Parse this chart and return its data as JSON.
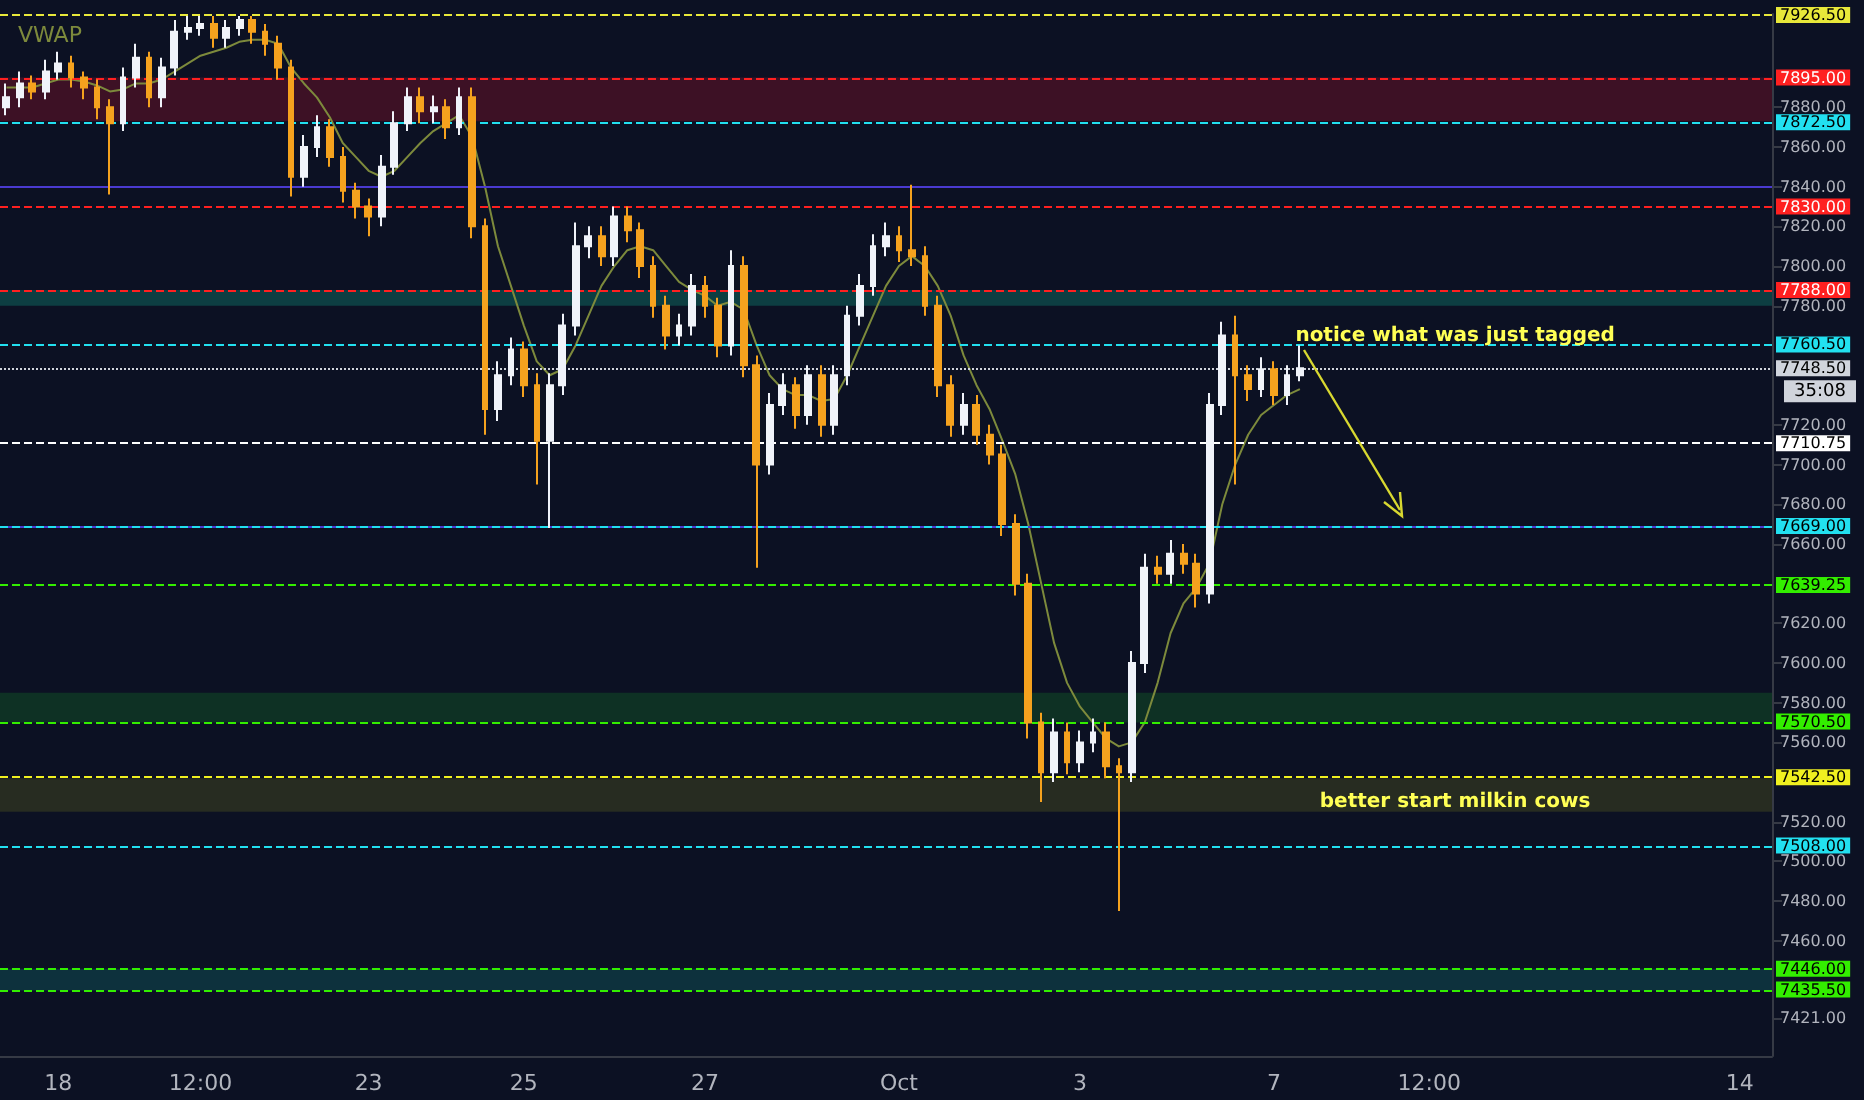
{
  "chart_data": {
    "type": "candlestick",
    "legend": "top left",
    "grid": false,
    "marker": "none",
    "categories": [
      null,
      null,
      null,
      null,
      "18",
      null,
      null,
      null,
      null,
      null,
      null,
      null,
      null,
      null,
      null,
      "12:00",
      null,
      null,
      null,
      null,
      null,
      null,
      null,
      null,
      null,
      null,
      null,
      null,
      "23",
      null,
      null,
      null,
      null,
      null,
      null,
      null,
      null,
      null,
      null,
      null,
      "25",
      null,
      null,
      null,
      null,
      null,
      null,
      null,
      null,
      null,
      null,
      null,
      null,
      null,
      "27",
      null,
      null,
      null,
      null,
      null,
      null,
      null,
      null,
      null,
      null,
      null,
      null,
      null,
      null,
      "Oct",
      null,
      null,
      null,
      null,
      null,
      null,
      null,
      null,
      null,
      null,
      null,
      null,
      null,
      "3",
      null,
      null,
      null,
      null,
      null,
      null,
      null,
      null,
      null,
      null,
      null,
      null,
      null,
      null,
      "7",
      null,
      null,
      null,
      null,
      null,
      null,
      null,
      null,
      null,
      null,
      null,
      "12:00",
      null,
      null,
      null,
      null,
      null,
      null,
      null,
      null,
      null,
      null,
      null,
      null,
      null,
      null,
      null,
      null,
      null,
      null,
      null,
      null,
      null,
      null,
      null,
      "14",
      null,
      null
    ],
    "ohlc": [
      [
        7880,
        7892,
        7876,
        7885
      ],
      [
        7885,
        7898,
        7880,
        7892
      ],
      [
        7892,
        7896,
        7884,
        7888
      ],
      [
        7888,
        7904,
        7884,
        7898
      ],
      [
        7898,
        7908,
        7894,
        7902
      ],
      [
        7902,
        7906,
        7890,
        7895
      ],
      [
        7895,
        7898,
        7884,
        7890
      ],
      [
        7890,
        7894,
        7874,
        7880
      ],
      [
        7880,
        7884,
        7836,
        7872
      ],
      [
        7872,
        7900,
        7868,
        7895
      ],
      [
        7895,
        7912,
        7890,
        7905
      ],
      [
        7905,
        7908,
        7880,
        7885
      ],
      [
        7885,
        7905,
        7880,
        7900
      ],
      [
        7900,
        7924,
        7896,
        7918
      ],
      [
        7918,
        7926,
        7914,
        7920
      ],
      [
        7920,
        7926,
        7916,
        7922
      ],
      [
        7922,
        7926,
        7910,
        7915
      ],
      [
        7915,
        7924,
        7910,
        7920
      ],
      [
        7920,
        7926,
        7916,
        7924
      ],
      [
        7924,
        7926,
        7912,
        7918
      ],
      [
        7918,
        7922,
        7906,
        7912
      ],
      [
        7912,
        7916,
        7894,
        7900
      ],
      [
        7900,
        7904,
        7835,
        7845
      ],
      [
        7845,
        7866,
        7840,
        7860
      ],
      [
        7860,
        7876,
        7855,
        7870
      ],
      [
        7870,
        7874,
        7850,
        7855
      ],
      [
        7855,
        7860,
        7832,
        7838
      ],
      [
        7838,
        7842,
        7824,
        7830
      ],
      [
        7830,
        7834,
        7815,
        7825
      ],
      [
        7825,
        7856,
        7820,
        7850
      ],
      [
        7850,
        7878,
        7846,
        7872
      ],
      [
        7872,
        7890,
        7868,
        7885
      ],
      [
        7885,
        7890,
        7872,
        7878
      ],
      [
        7878,
        7886,
        7872,
        7880
      ],
      [
        7880,
        7884,
        7864,
        7870
      ],
      [
        7870,
        7890,
        7866,
        7885
      ],
      [
        7885,
        7890,
        7814,
        7820
      ],
      [
        7820,
        7824,
        7715,
        7728
      ],
      [
        7728,
        7752,
        7722,
        7745
      ],
      [
        7745,
        7764,
        7740,
        7758
      ],
      [
        7758,
        7762,
        7734,
        7740
      ],
      [
        7740,
        7746,
        7690,
        7712
      ],
      [
        7712,
        7746,
        7668,
        7740
      ],
      [
        7740,
        7776,
        7735,
        7770
      ],
      [
        7770,
        7822,
        7765,
        7810
      ],
      [
        7810,
        7820,
        7804,
        7815
      ],
      [
        7815,
        7820,
        7800,
        7805
      ],
      [
        7805,
        7830,
        7800,
        7825
      ],
      [
        7825,
        7830,
        7812,
        7818
      ],
      [
        7818,
        7822,
        7794,
        7800
      ],
      [
        7800,
        7805,
        7774,
        7780
      ],
      [
        7780,
        7785,
        7758,
        7765
      ],
      [
        7765,
        7776,
        7760,
        7770
      ],
      [
        7770,
        7796,
        7765,
        7790
      ],
      [
        7790,
        7795,
        7774,
        7780
      ],
      [
        7780,
        7784,
        7754,
        7760
      ],
      [
        7760,
        7808,
        7755,
        7800
      ],
      [
        7800,
        7805,
        7744,
        7750
      ],
      [
        7750,
        7755,
        7648,
        7700
      ],
      [
        7700,
        7736,
        7695,
        7730
      ],
      [
        7730,
        7746,
        7725,
        7740
      ],
      [
        7740,
        7744,
        7718,
        7725
      ],
      [
        7725,
        7750,
        7720,
        7745
      ],
      [
        7745,
        7750,
        7714,
        7720
      ],
      [
        7720,
        7750,
        7715,
        7745
      ],
      [
        7745,
        7780,
        7740,
        7775
      ],
      [
        7775,
        7796,
        7770,
        7790
      ],
      [
        7790,
        7816,
        7785,
        7810
      ],
      [
        7810,
        7822,
        7805,
        7815
      ],
      [
        7815,
        7820,
        7802,
        7808
      ],
      [
        7808,
        7841,
        7800,
        7805
      ],
      [
        7805,
        7810,
        7775,
        7780
      ],
      [
        7780,
        7785,
        7734,
        7740
      ],
      [
        7740,
        7745,
        7714,
        7720
      ],
      [
        7720,
        7736,
        7715,
        7730
      ],
      [
        7730,
        7735,
        7710,
        7715
      ],
      [
        7715,
        7720,
        7700,
        7705
      ],
      [
        7705,
        7710,
        7664,
        7670
      ],
      [
        7670,
        7675,
        7634,
        7640
      ],
      [
        7640,
        7645,
        7562,
        7570
      ],
      [
        7570,
        7575,
        7530,
        7545
      ],
      [
        7545,
        7572,
        7540,
        7565
      ],
      [
        7565,
        7570,
        7544,
        7550
      ],
      [
        7550,
        7566,
        7545,
        7560
      ],
      [
        7560,
        7572,
        7555,
        7565
      ],
      [
        7565,
        7570,
        7542,
        7548
      ],
      [
        7548,
        7552,
        7475,
        7545
      ],
      [
        7545,
        7606,
        7540,
        7600
      ],
      [
        7600,
        7655,
        7595,
        7648
      ],
      [
        7648,
        7654,
        7640,
        7645
      ],
      [
        7645,
        7662,
        7640,
        7655
      ],
      [
        7655,
        7660,
        7645,
        7650
      ],
      [
        7650,
        7655,
        7628,
        7635
      ],
      [
        7635,
        7736,
        7630,
        7730
      ],
      [
        7730,
        7772,
        7725,
        7765
      ],
      [
        7765,
        7775,
        7690,
        7745
      ],
      [
        7745,
        7750,
        7732,
        7738
      ],
      [
        7738,
        7754,
        7734,
        7748
      ],
      [
        7748,
        7752,
        7730,
        7735
      ],
      [
        7735,
        7750,
        7730,
        7745
      ],
      [
        7745,
        7760,
        7742,
        7748.5
      ],
      null,
      null,
      null,
      null,
      null,
      null,
      null,
      null,
      null,
      null,
      null,
      null,
      null,
      null,
      null,
      null,
      null,
      null,
      null,
      null,
      null,
      null,
      null,
      null,
      null,
      null,
      null,
      null,
      null,
      null,
      null,
      null,
      null,
      null,
      null,
      null
    ],
    "series": [
      {
        "name": "VWAP",
        "type": "line",
        "color": "#7d8a3c",
        "values": [
          7890,
          7890,
          7890,
          7892,
          7894,
          7894,
          7893,
          7891,
          7888,
          7889,
          7892,
          7892,
          7894,
          7898,
          7902,
          7906,
          7908,
          7910,
          7913,
          7914,
          7914,
          7912,
          7900,
          7892,
          7885,
          7875,
          7862,
          7855,
          7848,
          7845,
          7848,
          7855,
          7862,
          7868,
          7872,
          7876,
          7865,
          7840,
          7810,
          7790,
          7770,
          7752,
          7745,
          7748,
          7760,
          7775,
          7790,
          7800,
          7808,
          7810,
          7808,
          7800,
          7792,
          7788,
          7785,
          7780,
          7782,
          7778,
          7760,
          7745,
          7738,
          7735,
          7735,
          7732,
          7733,
          7745,
          7760,
          7775,
          7790,
          7800,
          7805,
          7800,
          7790,
          7775,
          7755,
          7740,
          7728,
          7712,
          7695,
          7670,
          7640,
          7610,
          7590,
          7578,
          7570,
          7562,
          7558,
          7560,
          7570,
          7590,
          7615,
          7630,
          7638,
          7650,
          7680,
          7700,
          7715,
          7725,
          7730,
          7735,
          7738,
          null,
          null,
          null,
          null,
          null,
          null,
          null,
          null,
          null,
          null,
          null,
          null,
          null,
          null,
          null,
          null,
          null,
          null,
          null,
          null,
          null,
          null,
          null,
          null,
          null,
          null,
          null,
          null,
          null,
          null,
          null,
          null,
          null,
          null,
          null,
          null
        ]
      }
    ],
    "ylim": [
      7402,
      7927
    ],
    "yticks": [
      {
        "value": 7880,
        "label": "7880.00"
      },
      {
        "value": 7860,
        "label": "7860.00"
      },
      {
        "value": 7840,
        "label": "7840.00"
      },
      {
        "value": 7820,
        "label": "7820.00"
      },
      {
        "value": 7800,
        "label": "7800.00"
      },
      {
        "value": 7780,
        "label": "7780.00"
      },
      {
        "value": 7720,
        "label": "7720.00"
      },
      {
        "value": 7700,
        "label": "7700.00"
      },
      {
        "value": 7680,
        "label": "7680.00"
      },
      {
        "value": 7660,
        "label": "7660.00"
      },
      {
        "value": 7620,
        "label": "7620.00"
      },
      {
        "value": 7600,
        "label": "7600.00"
      },
      {
        "value": 7580,
        "label": "7580.00"
      },
      {
        "value": 7560,
        "label": "7560.00"
      },
      {
        "value": 7520,
        "label": "7520.00"
      },
      {
        "value": 7500,
        "label": "7500.00"
      },
      {
        "value": 7480,
        "label": "7480.00"
      },
      {
        "value": 7460,
        "label": "7460.00"
      },
      {
        "value": 7421,
        "label": "7421.00"
      }
    ],
    "ref_lines": [
      {
        "axis": "y",
        "value": 7926.5,
        "label": "7926.50",
        "color": "#e8e83a",
        "line_style": "dashed"
      },
      {
        "axis": "y",
        "value": 7895,
        "label": "7895.00",
        "color": "#ff2020",
        "line_style": "dashed"
      },
      {
        "axis": "y",
        "value": 7872.5,
        "label": "7872.50",
        "color": "#22e0f0",
        "line_style": "dashed"
      },
      {
        "axis": "y",
        "value": 7840,
        "label": null,
        "color": "#4a3ad0",
        "line_style": "solid"
      },
      {
        "axis": "y",
        "value": 7830,
        "label": "7830.00",
        "color": "#ff2020",
        "line_style": "dashed"
      },
      {
        "axis": "y",
        "value": 7788,
        "label": "7788.00",
        "color": "#ff2020",
        "line_style": "dashed"
      },
      {
        "axis": "y",
        "value": 7760.5,
        "label": "7760.50",
        "color": "#22e0f0",
        "line_style": "dashed"
      },
      {
        "axis": "y",
        "value": 7748.5,
        "label": "7748.50",
        "color": "#d0d4dc",
        "line_style": "dotted"
      },
      {
        "axis": "y",
        "value": 7710.75,
        "label": "7710.75",
        "color": "#ffffff",
        "line_style": "dashed"
      },
      {
        "axis": "y",
        "value": 7669,
        "label": null,
        "color": "#4a3ad0",
        "line_style": "solid"
      },
      {
        "axis": "y",
        "value": 7669,
        "label": "7669.00",
        "color": "#22e0f0",
        "line_style": "dashed"
      },
      {
        "axis": "y",
        "value": 7639.25,
        "label": "7639.25",
        "color": "#33ee00",
        "line_style": "dashed"
      },
      {
        "axis": "y",
        "value": 7570.5,
        "label": "7570.50",
        "color": "#33ee00",
        "line_style": "dashed"
      },
      {
        "axis": "y",
        "value": 7542.5,
        "label": "7542.50",
        "color": "#f0f020",
        "line_style": "dashed"
      },
      {
        "axis": "y",
        "value": 7508,
        "label": "7508.00",
        "color": "#22e0f0",
        "line_style": "dashed"
      },
      {
        "axis": "y",
        "value": 7446,
        "label": "7446.00",
        "color": "#33ee00",
        "line_style": "dashed"
      },
      {
        "axis": "y",
        "value": 7435.5,
        "label": "7435.50",
        "color": "#33ee00",
        "line_style": "dashed"
      }
    ],
    "bands": [
      {
        "axis": "y",
        "from": 7873,
        "to": 7895,
        "color": "#4a1226"
      },
      {
        "axis": "y",
        "from": 7780,
        "to": 7788,
        "color": "#0e4a4a"
      },
      {
        "axis": "y",
        "from": 7570,
        "to": 7585,
        "color": "#0f3a24"
      },
      {
        "axis": "y",
        "from": 7525,
        "to": 7542,
        "color": "#2e3320"
      },
      {
        "axis": "y",
        "from": 7435,
        "to": 7446,
        "color": "#0e3a44"
      }
    ],
    "annotations": [
      {
        "text": "notice what was just tagged",
        "y": 7765
      },
      {
        "text": "better start milkin cows",
        "y": 7530
      },
      "35:08"
    ]
  }
}
